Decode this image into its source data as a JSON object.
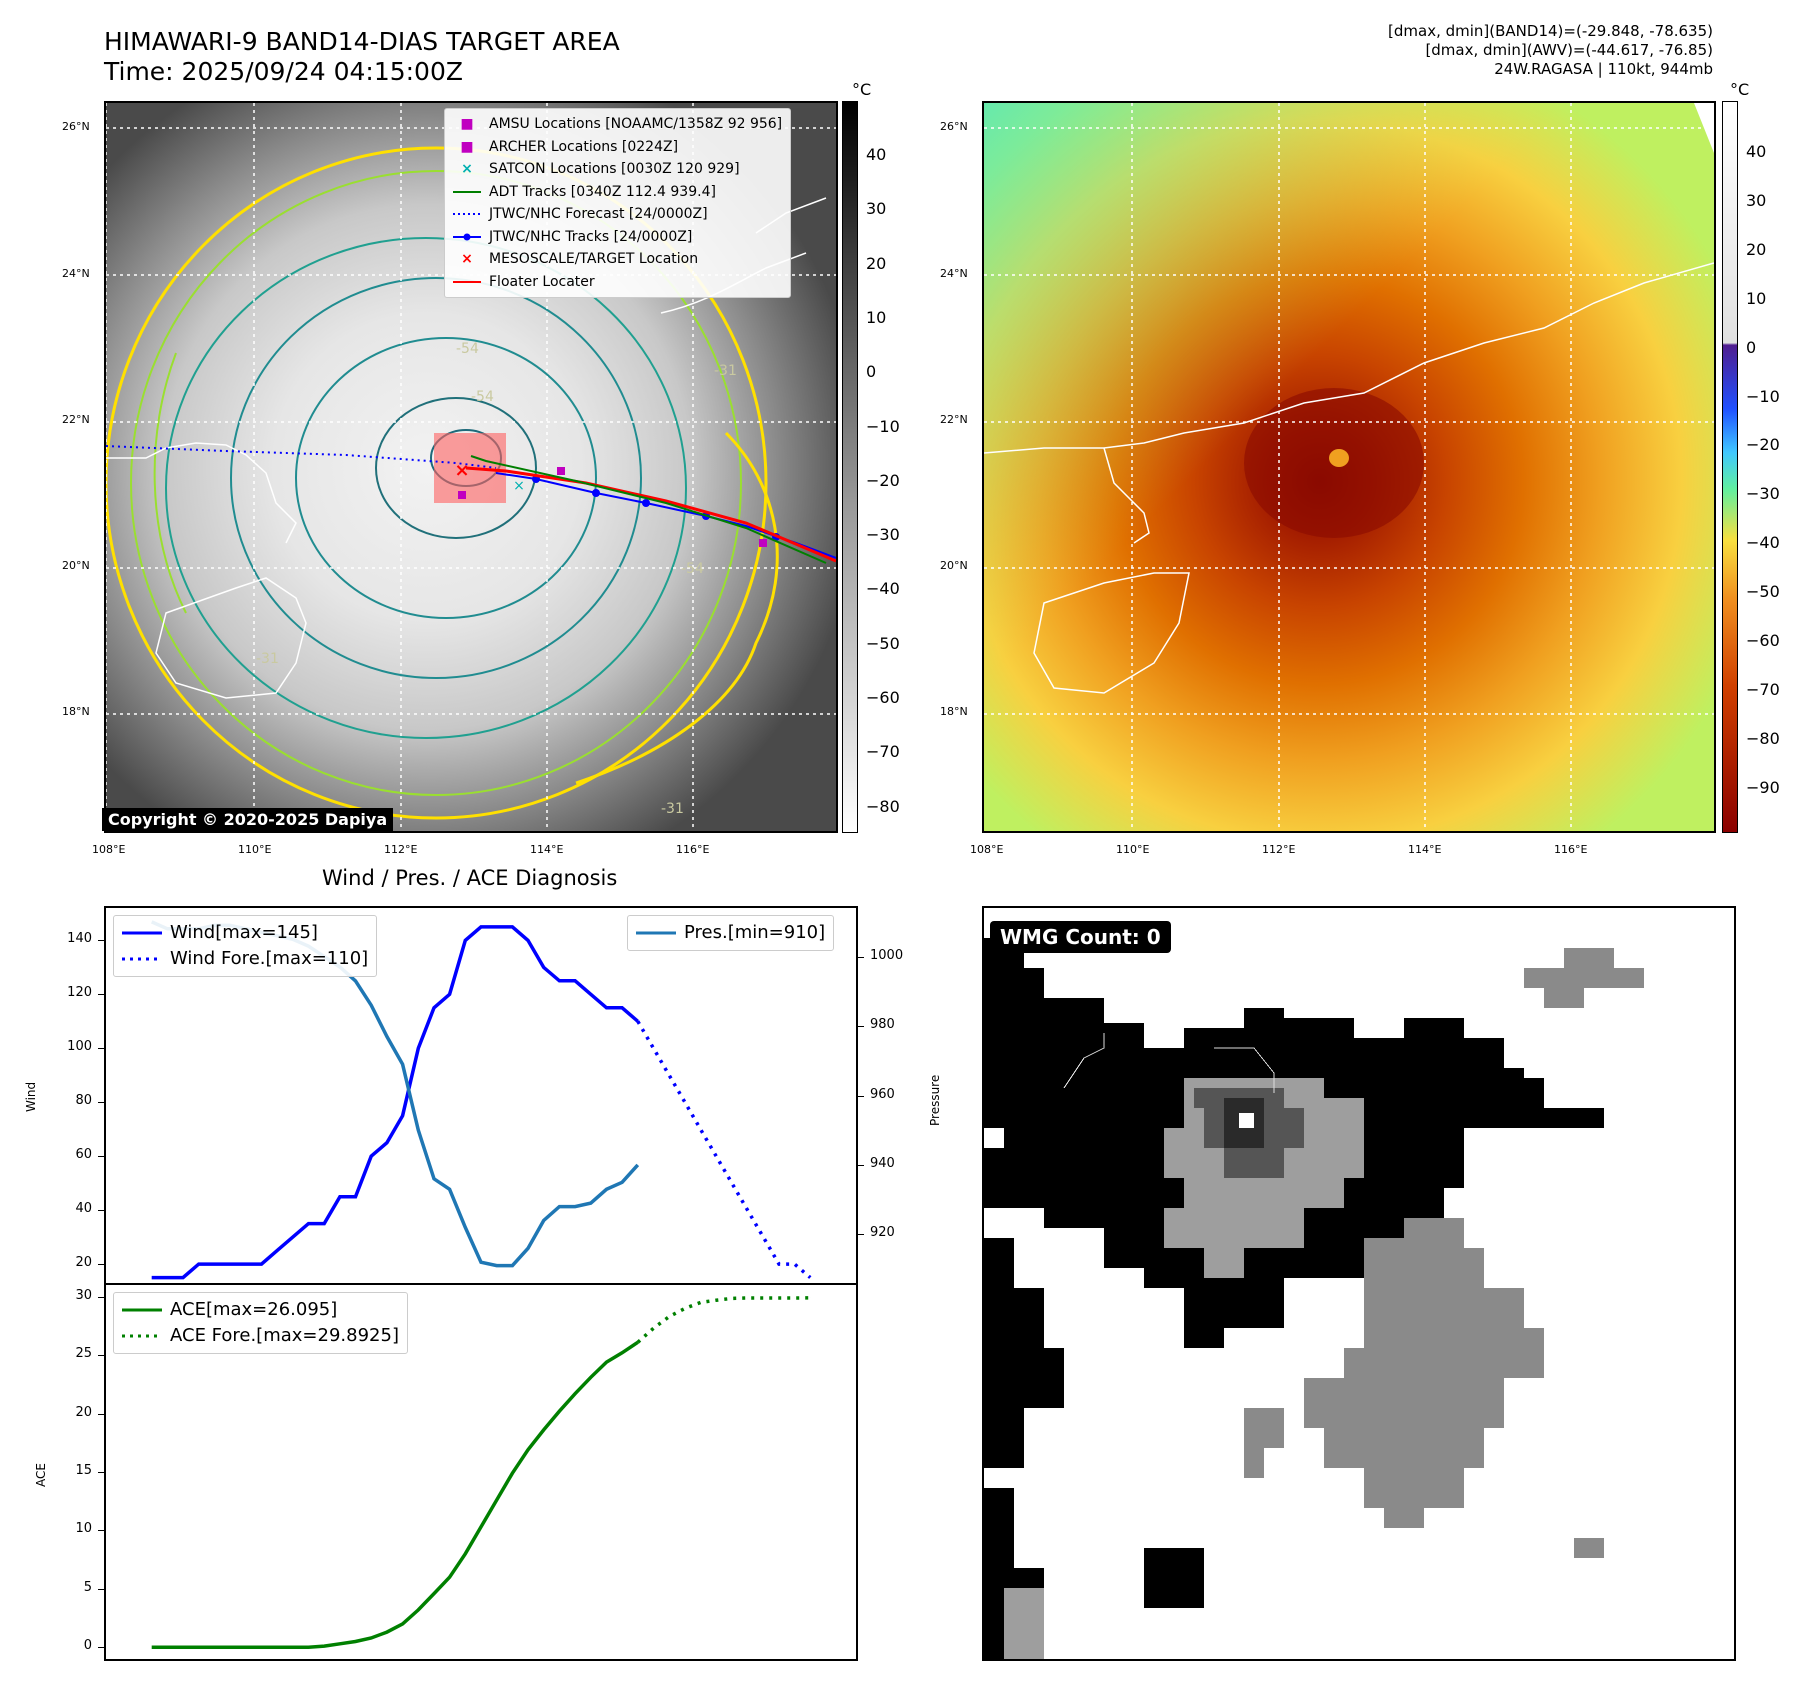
{
  "header": {
    "title_line1": "HIMAWARI-9 BAND14-DIAS TARGET AREA",
    "title_line2": "Time: 2025/09/24 04:15:00Z",
    "info_line1": "[dmax, dmin](BAND14)=(-29.848, -78.635)",
    "info_line2": "[dmax, dmin](AWV)=(-44.617, -76.85)",
    "info_line3": "24W.RAGASA | 110kt, 944mb"
  },
  "map": {
    "lat_labels": [
      "26°N",
      "24°N",
      "22°N",
      "20°N",
      "18°N"
    ],
    "lon_labels": [
      "108°E",
      "110°E",
      "112°E",
      "114°E",
      "116°E"
    ],
    "copyright": "Copyright © 2020-2025 Dapiya",
    "contour_labels": [
      "-54",
      "-54",
      "-31",
      "-31",
      "-54",
      "-31"
    ],
    "legend": [
      {
        "label": "AMSU Locations [NOAAMC/1358Z 92 956]",
        "color": "#c000c0",
        "marker": "square"
      },
      {
        "label": "ARCHER Locations [0224Z]",
        "color": "#c000c0",
        "marker": "square"
      },
      {
        "label": "SATCON Locations [0030Z 120 929]",
        "color": "#00b0b0",
        "marker": "x"
      },
      {
        "label": "ADT Tracks [0340Z 112.4 939.4]",
        "color": "#007f00",
        "marker": "line"
      },
      {
        "label": "JTWC/NHC Forecast [24/0000Z]",
        "color": "#0000ff",
        "marker": "dotted"
      },
      {
        "label": "JTWC/NHC Tracks [24/0000Z]",
        "color": "#0000ff",
        "marker": "line-dot"
      },
      {
        "label": "MESOSCALE/TARGET Location",
        "color": "#ff0000",
        "marker": "x"
      },
      {
        "label": "Floater Locater",
        "color": "#ff0000",
        "marker": "line"
      }
    ]
  },
  "colorbar_gray": {
    "unit": "°C",
    "ticks": [
      "40",
      "30",
      "20",
      "10",
      "0",
      "−10",
      "−20",
      "−30",
      "−40",
      "−50",
      "−60",
      "−70",
      "−80"
    ]
  },
  "colorbar_color": {
    "unit": "°C",
    "ticks": [
      "40",
      "30",
      "20",
      "10",
      "0",
      "−10",
      "−20",
      "−30",
      "−40",
      "−50",
      "−60",
      "−70",
      "−80",
      "−90"
    ]
  },
  "diagnosis": {
    "title": "Wind / Pres. / ACE Diagnosis",
    "wind_ylabel": "Wind",
    "pres_ylabel": "Pressure",
    "ace_ylabel": "ACE",
    "wind_ticks": [
      "140",
      "120",
      "100",
      "80",
      "60",
      "40",
      "20"
    ],
    "pres_ticks": [
      "1000",
      "980",
      "960",
      "940",
      "920"
    ],
    "ace_ticks": [
      "30",
      "25",
      "20",
      "15",
      "10",
      "5",
      "0"
    ],
    "legend_wind": "Wind[max=145]",
    "legend_wind_fore": "Wind Fore.[max=110]",
    "legend_pres": "Pres.[min=910]",
    "legend_ace": "ACE[max=26.095]",
    "legend_ace_fore": "ACE Fore.[max=29.8925]"
  },
  "wmg": {
    "label": "WMG Count: 0"
  },
  "chart_data": [
    {
      "type": "line",
      "title": "Wind / Pres. / ACE Diagnosis",
      "xlabel": "",
      "ylabel": "Wind",
      "ylim": [
        13,
        152
      ],
      "y2label": "Pressure",
      "y2lim": [
        906,
        1014
      ],
      "series": [
        {
          "name": "Wind[max=145]",
          "color": "#0000ff",
          "style": "solid",
          "x": [
            0,
            1,
            2,
            3,
            4,
            5,
            6,
            7,
            8,
            9,
            10,
            11,
            12,
            13,
            14,
            15,
            16,
            17,
            18,
            19,
            20,
            21,
            22,
            23,
            24,
            25,
            26,
            27,
            28,
            29,
            30,
            31
          ],
          "values": [
            15,
            15,
            15,
            20,
            20,
            20,
            20,
            20,
            25,
            30,
            35,
            35,
            45,
            45,
            60,
            65,
            75,
            100,
            115,
            120,
            140,
            145,
            145,
            145,
            140,
            130,
            125,
            125,
            120,
            115,
            115,
            110
          ]
        },
        {
          "name": "Wind Fore.[max=110]",
          "color": "#0000ff",
          "style": "dotted",
          "x": [
            31,
            32,
            33,
            34,
            35,
            36,
            37,
            38,
            39,
            40,
            41,
            42
          ],
          "values": [
            110,
            100,
            90,
            80,
            70,
            60,
            50,
            40,
            30,
            20,
            20,
            15
          ]
        },
        {
          "name": "Pres.[min=910]",
          "color": "#1f77b4",
          "style": "solid",
          "axis": "right",
          "x": [
            0,
            1,
            2,
            3,
            4,
            5,
            6,
            7,
            8,
            9,
            10,
            11,
            12,
            13,
            14,
            15,
            16,
            17,
            18,
            19,
            20,
            21,
            22,
            23,
            24,
            25,
            26,
            27,
            28,
            29,
            30,
            31
          ],
          "values": [
            1010,
            1008,
            1008,
            1008,
            1009,
            1009,
            1008,
            1007,
            1006,
            1005,
            1003,
            1000,
            997,
            993,
            986,
            977,
            969,
            950,
            936,
            933,
            922,
            912,
            911,
            911,
            916,
            924,
            928,
            928,
            929,
            933,
            935,
            940
          ]
        }
      ]
    },
    {
      "type": "line",
      "title": "",
      "xlabel": "",
      "ylabel": "ACE",
      "ylim": [
        -1,
        31
      ],
      "series": [
        {
          "name": "ACE[max=26.095]",
          "color": "#008000",
          "style": "solid",
          "x": [
            0,
            1,
            2,
            3,
            4,
            5,
            6,
            7,
            8,
            9,
            10,
            11,
            12,
            13,
            14,
            15,
            16,
            17,
            18,
            19,
            20,
            21,
            22,
            23,
            24,
            25,
            26,
            27,
            28,
            29,
            30,
            31
          ],
          "values": [
            0,
            0,
            0,
            0,
            0,
            0,
            0,
            0,
            0,
            0,
            0,
            0.1,
            0.3,
            0.5,
            0.8,
            1.3,
            2.0,
            3.2,
            4.6,
            6.0,
            8.0,
            10.3,
            12.6,
            14.9,
            16.9,
            18.6,
            20.2,
            21.7,
            23.1,
            24.4,
            25.2,
            26.095
          ]
        },
        {
          "name": "ACE Fore.[max=29.8925]",
          "color": "#008000",
          "style": "dotted",
          "x": [
            31,
            32,
            33,
            34,
            35,
            36,
            37,
            38,
            39,
            40,
            41,
            42
          ],
          "values": [
            26.095,
            27.3,
            28.3,
            29.0,
            29.5,
            29.7,
            29.85,
            29.89,
            29.89,
            29.89,
            29.89,
            29.8925
          ]
        }
      ]
    }
  ]
}
